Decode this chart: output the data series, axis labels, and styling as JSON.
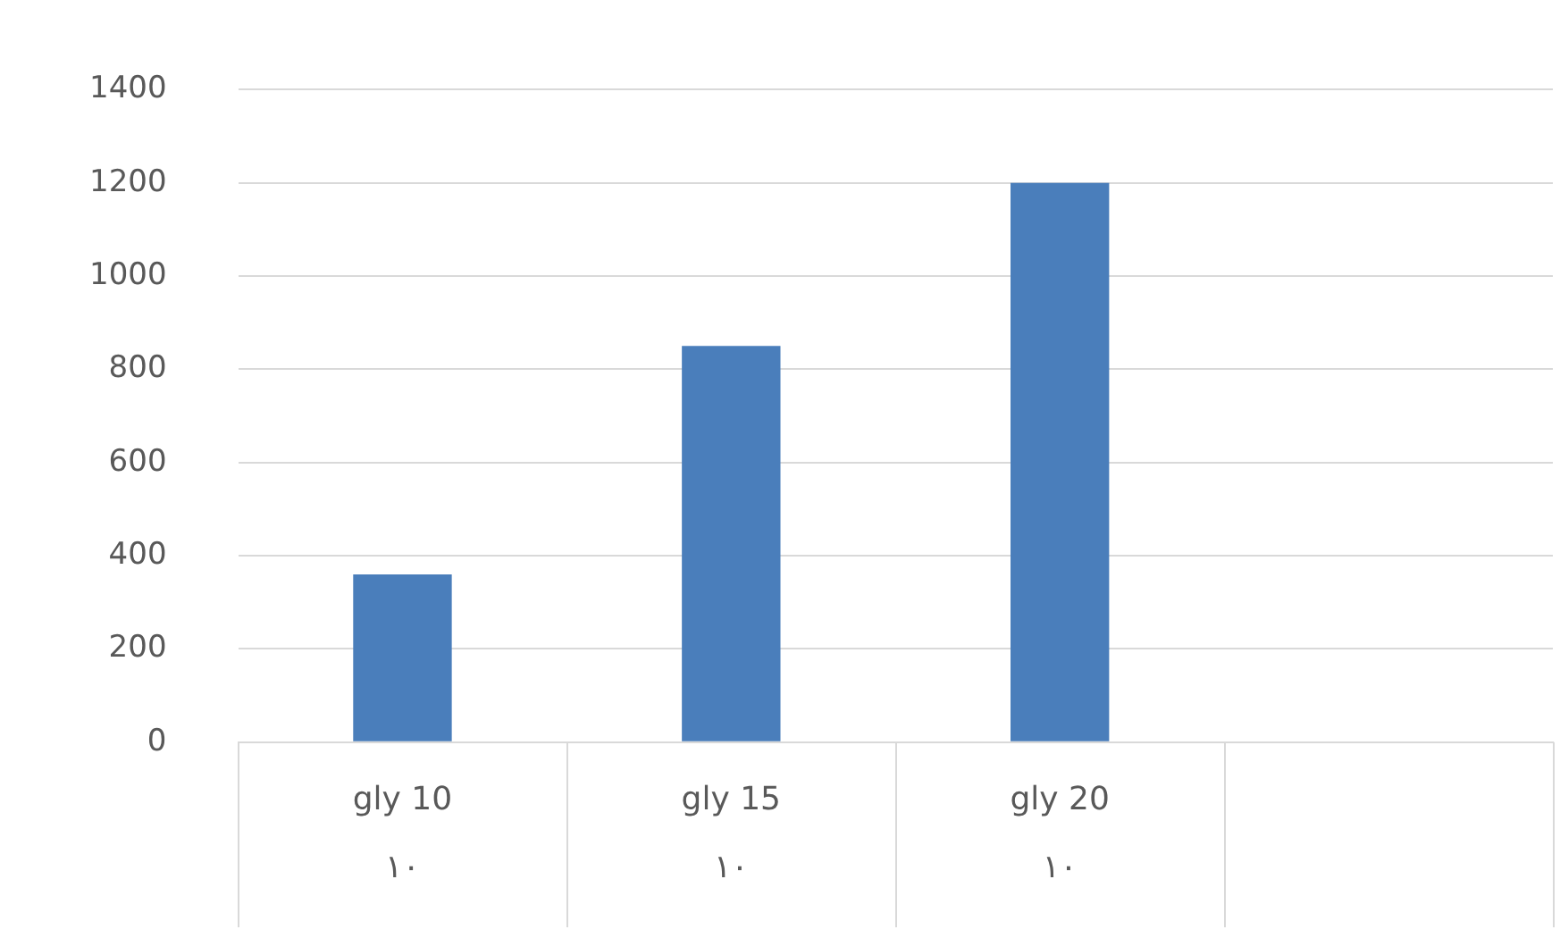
{
  "chart_data": {
    "type": "bar",
    "categories": [
      "gly 10\n١٠",
      "gly 15\n١٠",
      "gly 20\n١٠",
      null
    ],
    "values": [
      360,
      850,
      1200,
      null
    ],
    "color": "#4a7ebb",
    "ylim": [
      0,
      1400
    ],
    "yticks": [
      0,
      200,
      400,
      600,
      800,
      1000,
      1200,
      1400
    ],
    "grid": "y",
    "legend": false
  }
}
